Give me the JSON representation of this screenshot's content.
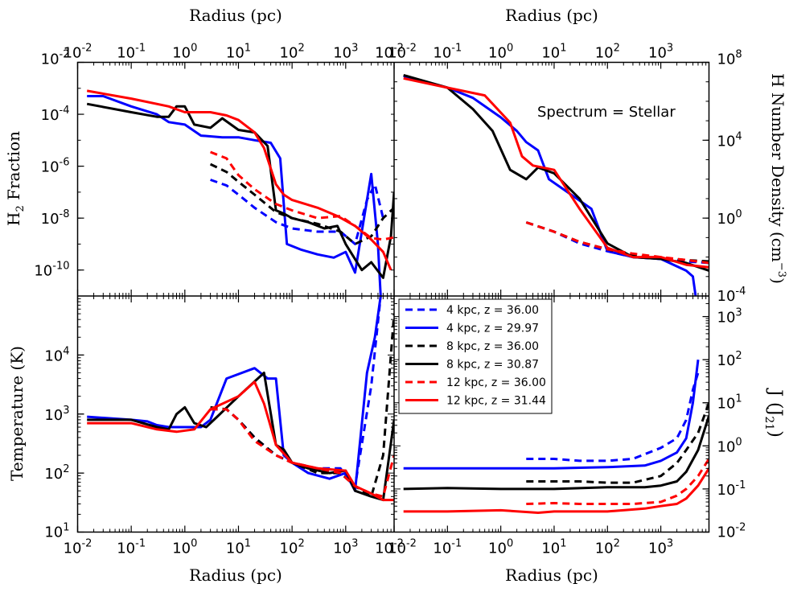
{
  "figure_annotation": "Spectrum = Stellar",
  "axis_labels": {
    "radius_top_left": "Radius (pc)",
    "radius_top_right": "Radius (pc)",
    "radius_bottom_left": "Radius (pc)",
    "radius_bottom_right": "Radius (pc)",
    "h2_fraction": "H",
    "h2_fraction_sub": "2",
    "h2_fraction_rest": " Fraction",
    "temperature": "Temperature (K)",
    "density": "H Number Density (cm",
    "density_sup": "−3",
    "density_close": ")",
    "j21": "J (J",
    "j21_sub": "21",
    "j21_close": ")"
  },
  "x_ticks": [
    {
      "mant": "10",
      "exp": "-2"
    },
    {
      "mant": "10",
      "exp": "-1"
    },
    {
      "mant": "10",
      "exp": "0"
    },
    {
      "mant": "10",
      "exp": "1"
    },
    {
      "mant": "10",
      "exp": "2"
    },
    {
      "mant": "10",
      "exp": "3"
    }
  ],
  "y_ticks": {
    "h2": [
      {
        "mant": "10",
        "exp": "-2"
      },
      {
        "mant": "10",
        "exp": "-4"
      },
      {
        "mant": "10",
        "exp": "-6"
      },
      {
        "mant": "10",
        "exp": "-8"
      },
      {
        "mant": "10",
        "exp": "-10"
      }
    ],
    "density": [
      {
        "mant": "10",
        "exp": "8"
      },
      {
        "mant": "10",
        "exp": "4"
      },
      {
        "mant": "10",
        "exp": "0"
      },
      {
        "mant": "10",
        "exp": "-4"
      }
    ],
    "temperature": [
      {
        "mant": "10",
        "exp": "4"
      },
      {
        "mant": "10",
        "exp": "3"
      },
      {
        "mant": "10",
        "exp": "2"
      },
      {
        "mant": "10",
        "exp": "1"
      }
    ],
    "j21": [
      {
        "mant": "10",
        "exp": "3"
      },
      {
        "mant": "10",
        "exp": "2"
      },
      {
        "mant": "10",
        "exp": "1"
      },
      {
        "mant": "10",
        "exp": "0"
      },
      {
        "mant": "10",
        "exp": "-1"
      },
      {
        "mant": "10",
        "exp": "-2"
      }
    ]
  },
  "legend": [
    {
      "label": "4 kpc, z = 36.00",
      "color": "#0000ff",
      "style": "dashed"
    },
    {
      "label": "4 kpc, z = 29.97",
      "color": "#0000ff",
      "style": "solid"
    },
    {
      "label": "8 kpc, z = 36.00",
      "color": "#000000",
      "style": "dashed"
    },
    {
      "label": "8 kpc, z = 30.87",
      "color": "#000000",
      "style": "solid"
    },
    {
      "label": "12 kpc, z = 36.00",
      "color": "#ff0000",
      "style": "dashed"
    },
    {
      "label": "12 kpc, z = 31.44",
      "color": "#ff0000",
      "style": "solid"
    }
  ],
  "chart_data": [
    {
      "type": "line",
      "panel": "top-left",
      "title": "",
      "xlabel": "Radius (pc)",
      "ylabel": "H2 Fraction",
      "x_scale": "log",
      "y_scale": "log",
      "xlim": [
        0.01,
        8000
      ],
      "ylim": [
        1e-11,
        0.01
      ],
      "series": [
        {
          "name": "4 kpc, z = 36.00",
          "color": "#0000ff",
          "style": "dashed",
          "x": [
            3,
            6,
            10,
            20,
            50,
            100,
            300,
            800,
            1500,
            2500,
            3500,
            5000
          ],
          "y": [
            3e-07,
            1.8e-07,
            8e-08,
            2.5e-08,
            7e-09,
            4e-09,
            3e-09,
            3e-09,
            1e-09,
            5e-08,
            2e-07,
            1e-08
          ]
        },
        {
          "name": "4 kpc, z = 29.97",
          "color": "#0000ff",
          "style": "solid",
          "x": [
            0.015,
            0.03,
            0.1,
            0.3,
            0.5,
            1,
            2,
            5,
            10,
            20,
            40,
            60,
            80,
            150,
            300,
            600,
            1000,
            1500,
            3000,
            4000,
            4500
          ],
          "y": [
            0.0005,
            0.0005,
            0.0002,
            0.0001,
            5e-05,
            4e-05,
            1.5e-05,
            1.3e-05,
            1.3e-05,
            1e-05,
            8e-06,
            2e-06,
            1e-09,
            6e-10,
            4e-10,
            3e-10,
            5e-10,
            8e-11,
            5e-07,
            1e-09,
            1e-11
          ]
        },
        {
          "name": "8 kpc, z = 36.00",
          "color": "#000000",
          "style": "dashed",
          "x": [
            3,
            6,
            10,
            20,
            50,
            100,
            300,
            800,
            1500,
            3000,
            5000,
            8000
          ],
          "y": [
            1.2e-06,
            6e-07,
            2.5e-07,
            8e-08,
            1.7e-08,
            1e-08,
            6e-09,
            3e-09,
            1e-09,
            2e-09,
            1e-08,
            2.5e-08
          ]
        },
        {
          "name": "8 kpc, z = 30.87",
          "color": "#000000",
          "style": "solid",
          "x": [
            0.015,
            0.1,
            0.3,
            0.5,
            0.7,
            1,
            1.5,
            3,
            5,
            10,
            20,
            35,
            50,
            70,
            100,
            200,
            400,
            700,
            1000,
            2000,
            3000,
            5000,
            7000,
            8000
          ],
          "y": [
            0.00025,
            0.00012,
            8e-05,
            8e-05,
            0.0002,
            0.0002,
            4e-05,
            3e-05,
            7e-05,
            2.5e-05,
            2e-05,
            6e-06,
            2e-08,
            1.5e-08,
            1e-08,
            7e-09,
            4e-09,
            5e-09,
            1e-09,
            1e-10,
            2e-10,
            5e-11,
            2e-09,
            1e-07
          ]
        },
        {
          "name": "12 kpc, z = 36.00",
          "color": "#ff0000",
          "style": "dashed",
          "x": [
            3,
            6,
            10,
            20,
            50,
            100,
            300,
            800,
            1500,
            3000,
            5000,
            8000
          ],
          "y": [
            3.5e-06,
            2e-06,
            4.5e-07,
            1.3e-07,
            3.5e-08,
            2e-08,
            1e-08,
            1.2e-08,
            5e-09,
            1.7e-09,
            1.5e-09,
            1.8e-09
          ]
        },
        {
          "name": "12 kpc, z = 31.44",
          "color": "#ff0000",
          "style": "solid",
          "x": [
            0.015,
            0.1,
            0.5,
            1,
            3,
            6,
            10,
            20,
            30,
            50,
            70,
            100,
            300,
            700,
            1500,
            3000,
            5000,
            7000
          ],
          "y": [
            0.0008,
            0.0004,
            0.0002,
            0.00012,
            0.00012,
            9e-05,
            6e-05,
            2e-05,
            5e-06,
            2e-07,
            8e-08,
            5e-08,
            2.5e-08,
            1.2e-08,
            5e-09,
            1.5e-09,
            5e-10,
            1e-10
          ]
        }
      ]
    },
    {
      "type": "line",
      "panel": "top-right",
      "title": "",
      "xlabel": "Radius (pc)",
      "ylabel": "H Number Density (cm^-3)",
      "x_scale": "log",
      "y_scale": "log",
      "xlim": [
        0.01,
        8000
      ],
      "ylim": [
        0.0001,
        100000000.0
      ],
      "series": [
        {
          "name": "4 kpc, z = 36.00",
          "color": "#0000ff",
          "style": "dashed",
          "x": [
            3,
            10,
            30,
            100,
            300,
            1000,
            3000,
            8000
          ],
          "y": [
            0.6,
            0.2,
            0.05,
            0.02,
            0.01,
            0.008,
            0.006,
            0.005
          ]
        },
        {
          "name": "4 kpc, z = 29.97",
          "color": "#0000ff",
          "style": "solid",
          "x": [
            0.015,
            0.1,
            0.3,
            1,
            2,
            3,
            5,
            8,
            15,
            50,
            100,
            300,
            1000,
            3000,
            4000,
            4500
          ],
          "y": [
            20000000.0,
            5000000.0,
            1500000.0,
            150000.0,
            30000.0,
            8000.0,
            3000.0,
            100.0,
            30,
            3,
            0.02,
            0.01,
            0.008,
            0.002,
            0.001,
            0.0001
          ]
        },
        {
          "name": "8 kpc, z = 36.00",
          "color": "#000000",
          "style": "dashed",
          "x": [
            3,
            10,
            30,
            100,
            300,
            1000,
            3000,
            8000
          ],
          "y": [
            0.6,
            0.2,
            0.06,
            0.025,
            0.012,
            0.009,
            0.007,
            0.006
          ]
        },
        {
          "name": "8 kpc, z = 30.87",
          "color": "#000000",
          "style": "solid",
          "x": [
            0.015,
            0.1,
            0.3,
            0.7,
            1.5,
            3,
            5,
            10,
            30,
            100,
            300,
            1000,
            3000,
            8000
          ],
          "y": [
            22000000.0,
            5000000.0,
            400000.0,
            30000.0,
            300.0,
            100.0,
            400.0,
            200.0,
            10,
            0.05,
            0.01,
            0.008,
            0.005,
            0.002
          ]
        },
        {
          "name": "12 kpc, z = 36.00",
          "color": "#ff0000",
          "style": "dashed",
          "x": [
            3,
            10,
            30,
            100,
            300,
            1000,
            3000,
            8000
          ],
          "y": [
            0.6,
            0.2,
            0.06,
            0.025,
            0.015,
            0.01,
            0.007,
            0.005
          ]
        },
        {
          "name": "12 kpc, z = 31.44",
          "color": "#ff0000",
          "style": "solid",
          "x": [
            0.015,
            0.1,
            0.5,
            1.5,
            2.5,
            4,
            10,
            30,
            100,
            300,
            1000,
            3000,
            8000
          ],
          "y": [
            15000000.0,
            5000000.0,
            2000000.0,
            80000.0,
            1500.0,
            500.0,
            300.0,
            3,
            0.03,
            0.01,
            0.01,
            0.004,
            0.003
          ]
        }
      ]
    },
    {
      "type": "line",
      "panel": "bottom-left",
      "title": "",
      "xlabel": "Radius (pc)",
      "ylabel": "Temperature (K)",
      "x_scale": "log",
      "y_scale": "log",
      "xlim": [
        0.01,
        8000
      ],
      "ylim": [
        10,
        100000
      ],
      "series": [
        {
          "name": "4 kpc, z = 36.00",
          "color": "#0000ff",
          "style": "dashed",
          "x": [
            3,
            6,
            10,
            20,
            50,
            100,
            300,
            800,
            1500,
            3000,
            4500
          ],
          "y": [
            1200,
            1200,
            800,
            400,
            200,
            150,
            120,
            120,
            60,
            3000,
            100000
          ]
        },
        {
          "name": "4 kpc, z = 29.97",
          "color": "#0000ff",
          "style": "solid",
          "x": [
            0.015,
            0.1,
            0.2,
            0.3,
            0.5,
            1,
            2,
            3,
            6,
            20,
            35,
            50,
            70,
            100,
            200,
            500,
            1000,
            1500,
            2500,
            3500,
            4500
          ],
          "y": [
            900,
            800,
            750,
            650,
            600,
            600,
            600,
            800,
            4000,
            6000,
            4000,
            4000,
            200,
            150,
            100,
            80,
            100,
            50,
            5000,
            20000,
            100000
          ]
        },
        {
          "name": "8 kpc, z = 36.00",
          "color": "#000000",
          "style": "dashed",
          "x": [
            3,
            6,
            10,
            20,
            50,
            100,
            300,
            800,
            1500,
            3000,
            5000,
            8000
          ],
          "y": [
            1300,
            1200,
            800,
            400,
            200,
            150,
            100,
            100,
            60,
            40,
            200,
            50000
          ]
        },
        {
          "name": "8 kpc, z = 30.87",
          "color": "#000000",
          "style": "solid",
          "x": [
            0.015,
            0.1,
            0.3,
            0.5,
            0.7,
            1,
            1.5,
            2.5,
            4,
            10,
            30,
            50,
            70,
            100,
            200,
            500,
            1000,
            1500,
            3000,
            5000,
            8000
          ],
          "y": [
            800,
            800,
            600,
            550,
            1000,
            1300,
            700,
            600,
            900,
            2000,
            5000,
            300,
            250,
            150,
            120,
            100,
            110,
            50,
            40,
            35,
            800
          ]
        },
        {
          "name": "12 kpc, z = 36.00",
          "color": "#ff0000",
          "style": "dashed",
          "x": [
            3,
            6,
            10,
            20,
            50,
            100,
            300,
            800,
            1500,
            3000,
            5000,
            8000
          ],
          "y": [
            1200,
            1200,
            800,
            350,
            200,
            150,
            120,
            100,
            60,
            45,
            40,
            200
          ]
        },
        {
          "name": "12 kpc, z = 31.44",
          "color": "#ff0000",
          "style": "solid",
          "x": [
            0.015,
            0.1,
            0.3,
            0.7,
            1.5,
            3,
            10,
            20,
            30,
            50,
            100,
            300,
            1000,
            1500,
            3000,
            5000,
            8000
          ],
          "y": [
            700,
            700,
            550,
            500,
            550,
            1200,
            2000,
            3500,
            1500,
            300,
            150,
            120,
            110,
            60,
            45,
            35,
            35
          ]
        }
      ]
    },
    {
      "type": "line",
      "panel": "bottom-right",
      "title": "",
      "xlabel": "Radius (pc)",
      "ylabel": "J (J21)",
      "x_scale": "log",
      "y_scale": "log",
      "xlim": [
        0.01,
        8000
      ],
      "ylim": [
        0.01,
        3000
      ],
      "series": [
        {
          "name": "4 kpc, z = 36.00",
          "color": "#0000ff",
          "style": "dashed",
          "x": [
            3,
            10,
            30,
            100,
            300,
            1000,
            2000,
            3000,
            4000,
            5000
          ],
          "y": [
            0.5,
            0.5,
            0.45,
            0.45,
            0.5,
            0.9,
            1.5,
            4,
            20,
            50
          ]
        },
        {
          "name": "4 kpc, z = 29.97",
          "color": "#0000ff",
          "style": "solid",
          "x": [
            0.015,
            0.1,
            1,
            10,
            100,
            500,
            1000,
            2000,
            3000,
            4000,
            5000
          ],
          "y": [
            0.3,
            0.3,
            0.3,
            0.3,
            0.32,
            0.35,
            0.45,
            0.7,
            1.5,
            10,
            100
          ]
        },
        {
          "name": "8 kpc, z = 36.00",
          "color": "#000000",
          "style": "dashed",
          "x": [
            3,
            10,
            30,
            100,
            300,
            1000,
            2000,
            3000,
            5000,
            8000
          ],
          "y": [
            0.15,
            0.15,
            0.15,
            0.14,
            0.14,
            0.2,
            0.4,
            0.8,
            2,
            10
          ]
        },
        {
          "name": "8 kpc, z = 30.87",
          "color": "#000000",
          "style": "solid",
          "x": [
            0.015,
            0.1,
            1,
            10,
            100,
            500,
            1000,
            2000,
            3000,
            5000,
            8000
          ],
          "y": [
            0.1,
            0.105,
            0.1,
            0.1,
            0.11,
            0.11,
            0.12,
            0.15,
            0.25,
            0.8,
            5
          ]
        },
        {
          "name": "12 kpc, z = 36.00",
          "color": "#ff0000",
          "style": "dashed",
          "x": [
            3,
            10,
            30,
            100,
            300,
            1000,
            2000,
            3000,
            5000,
            8000
          ],
          "y": [
            0.045,
            0.047,
            0.045,
            0.045,
            0.045,
            0.05,
            0.07,
            0.1,
            0.2,
            0.5
          ]
        },
        {
          "name": "12 kpc, z = 31.44",
          "color": "#ff0000",
          "style": "solid",
          "x": [
            0.015,
            0.1,
            1,
            5,
            10,
            100,
            500,
            1000,
            2000,
            3000,
            5000,
            8000
          ],
          "y": [
            0.03,
            0.03,
            0.032,
            0.028,
            0.03,
            0.03,
            0.035,
            0.04,
            0.045,
            0.06,
            0.12,
            0.3
          ]
        }
      ]
    }
  ]
}
